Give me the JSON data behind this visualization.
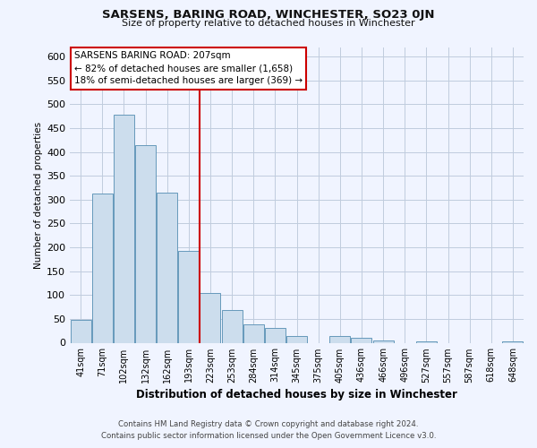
{
  "title": "SARSENS, BARING ROAD, WINCHESTER, SO23 0JN",
  "subtitle": "Size of property relative to detached houses in Winchester",
  "xlabel": "Distribution of detached houses by size in Winchester",
  "ylabel": "Number of detached properties",
  "bar_labels": [
    "41sqm",
    "71sqm",
    "102sqm",
    "132sqm",
    "162sqm",
    "193sqm",
    "223sqm",
    "253sqm",
    "284sqm",
    "314sqm",
    "345sqm",
    "375sqm",
    "405sqm",
    "436sqm",
    "466sqm",
    "496sqm",
    "527sqm",
    "557sqm",
    "587sqm",
    "618sqm",
    "648sqm"
  ],
  "bar_values": [
    48,
    312,
    478,
    415,
    314,
    192,
    105,
    69,
    38,
    31,
    14,
    0,
    15,
    10,
    5,
    0,
    2,
    0,
    0,
    0,
    2
  ],
  "bar_color": "#ccdded",
  "bar_edge_color": "#6699bb",
  "vline_color": "#cc0000",
  "annotation_title": "SARSENS BARING ROAD: 207sqm",
  "annotation_line1": "← 82% of detached houses are smaller (1,658)",
  "annotation_line2": "18% of semi-detached houses are larger (369) →",
  "annotation_box_color": "#ffffff",
  "annotation_box_edge": "#cc0000",
  "ylim": [
    0,
    620
  ],
  "yticks": [
    0,
    50,
    100,
    150,
    200,
    250,
    300,
    350,
    400,
    450,
    500,
    550,
    600
  ],
  "footer_line1": "Contains HM Land Registry data © Crown copyright and database right 2024.",
  "footer_line2": "Contains public sector information licensed under the Open Government Licence v3.0.",
  "bg_color": "#f0f4ff",
  "grid_color": "#c0ccdd"
}
